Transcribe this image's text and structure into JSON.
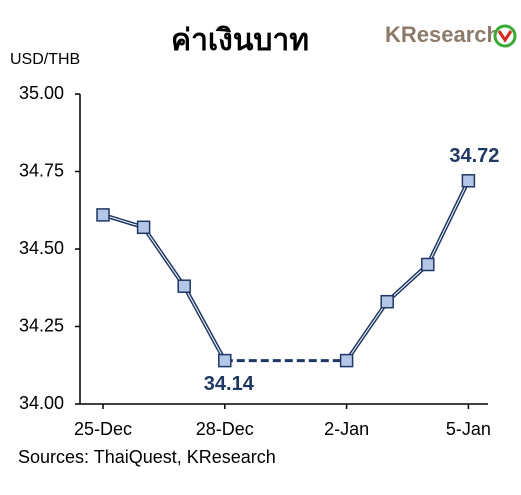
{
  "chart_data": {
    "type": "line",
    "title": "ค่าเงินบาท",
    "logo": "KResearch",
    "y_label": "USD/THB",
    "source": "Sources: ThaiQuest, KResearch",
    "categories": [
      "25-Dec",
      null,
      null,
      "28-Dec",
      null,
      null,
      "2-Jan",
      null,
      null,
      "5-Jan"
    ],
    "values": [
      34.61,
      34.57,
      34.38,
      34.14,
      null,
      null,
      34.14,
      34.33,
      34.45,
      34.72
    ],
    "value_labels": [
      null,
      null,
      null,
      "34.14",
      null,
      null,
      null,
      null,
      null,
      "34.72"
    ],
    "color": "#1f3864",
    "marker_color": "#b4c7e7",
    "ylim": [
      34,
      35
    ],
    "yticks": [
      {
        "value": 34,
        "label": "34.00"
      },
      {
        "value": 34.25,
        "label": "34.25"
      },
      {
        "value": 34.5,
        "label": "34.50"
      },
      {
        "value": 34.75,
        "label": "34.75"
      },
      {
        "value": 35,
        "label": "35.00"
      }
    ],
    "grid": false
  }
}
